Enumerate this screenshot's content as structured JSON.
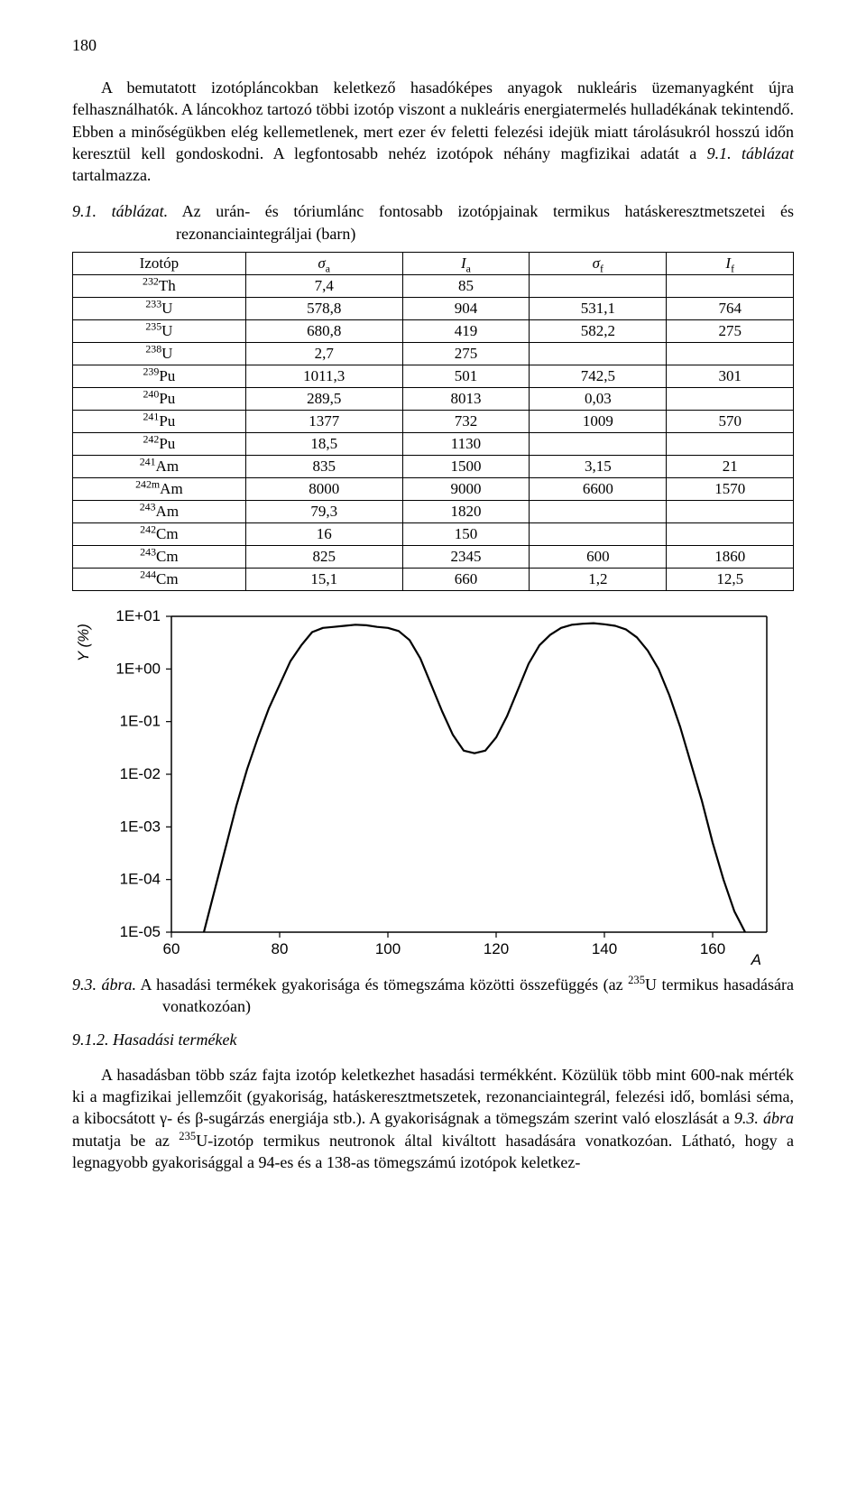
{
  "page_number": "180",
  "para1": "A bemutatott izotópláncokban keletkező hasadóképes anyagok nukleáris üzemanyagként újra felhasználhatók. A láncokhoz tartozó többi izotóp viszont a nukleáris energiatermelés hulladékának tekintendő. Ebben a minőségükben elég kellemetlenek, mert ezer év feletti felezési idejük miatt tárolásukról hosszú időn keresztül kell gondoskodni. A legfontosabb nehéz izotópok néhány magfizikai adatát a ",
  "para1_ref": "9.1. táblázat",
  "para1_tail": " tartalmazza.",
  "table_caption_lead": "9.1. táblázat.",
  "table_caption_rest": " Az urán- és tóriumlánc fontosabb izotópjainak termikus hatáskeresztmetszetei és rezonanciaintegráljai (barn)",
  "table": {
    "headers": [
      "Izotóp",
      "σa",
      "Ia",
      "σf",
      "If"
    ],
    "rows": [
      {
        "iso_pre": "232",
        "iso_sym": "Th",
        "v": [
          "7,4",
          "85",
          "",
          ""
        ]
      },
      {
        "iso_pre": "233",
        "iso_sym": "U",
        "v": [
          "578,8",
          "904",
          "531,1",
          "764"
        ]
      },
      {
        "iso_pre": "235",
        "iso_sym": "U",
        "v": [
          "680,8",
          "419",
          "582,2",
          "275"
        ]
      },
      {
        "iso_pre": "238",
        "iso_sym": "U",
        "v": [
          "2,7",
          "275",
          "",
          ""
        ]
      },
      {
        "iso_pre": "239",
        "iso_sym": "Pu",
        "v": [
          "1011,3",
          "501",
          "742,5",
          "301"
        ]
      },
      {
        "iso_pre": "240",
        "iso_sym": "Pu",
        "v": [
          "289,5",
          "8013",
          "0,03",
          ""
        ]
      },
      {
        "iso_pre": "241",
        "iso_sym": "Pu",
        "v": [
          "1377",
          "732",
          "1009",
          "570"
        ]
      },
      {
        "iso_pre": "242",
        "iso_sym": "Pu",
        "v": [
          "18,5",
          "1130",
          "",
          ""
        ]
      },
      {
        "iso_pre": "241",
        "iso_sym": "Am",
        "v": [
          "835",
          "1500",
          "3,15",
          "21"
        ]
      },
      {
        "iso_pre": "242m",
        "iso_sym": "Am",
        "v": [
          "8000",
          "9000",
          "6600",
          "1570"
        ]
      },
      {
        "iso_pre": "243",
        "iso_sym": "Am",
        "v": [
          "79,3",
          "1820",
          "",
          ""
        ]
      },
      {
        "iso_pre": "242",
        "iso_sym": "Cm",
        "v": [
          "16",
          "150",
          "",
          ""
        ]
      },
      {
        "iso_pre": "243",
        "iso_sym": "Cm",
        "v": [
          "825",
          "2345",
          "600",
          "1860"
        ]
      },
      {
        "iso_pre": "244",
        "iso_sym": "Cm",
        "v": [
          "15,1",
          "660",
          "1,2",
          "12,5"
        ]
      }
    ]
  },
  "chart": {
    "type": "line",
    "xlabel": "A",
    "ylabel": "Y (%)",
    "xlim": [
      60,
      170
    ],
    "xticks": [
      60,
      80,
      100,
      120,
      140,
      160
    ],
    "yscale": "log",
    "ylim_exp": [
      -5,
      1
    ],
    "yticks": [
      "1E-05",
      "1E-04",
      "1E-03",
      "1E-02",
      "1E-01",
      "1E+00",
      "1E+01"
    ],
    "ytick_exp": [
      -5,
      -4,
      -3,
      -2,
      -1,
      0,
      1
    ],
    "line_color": "#000000",
    "line_width": 2.2,
    "axis_color": "#000000",
    "tick_fontsize": 17,
    "label_fontsize": 17,
    "background_color": "#ffffff",
    "data": [
      [
        66,
        -5
      ],
      [
        68,
        -4.2
      ],
      [
        70,
        -3.4
      ],
      [
        72,
        -2.6
      ],
      [
        74,
        -1.9
      ],
      [
        76,
        -1.3
      ],
      [
        78,
        -0.75
      ],
      [
        80,
        -0.3
      ],
      [
        82,
        0.15
      ],
      [
        84,
        0.45
      ],
      [
        86,
        0.7
      ],
      [
        88,
        0.78
      ],
      [
        90,
        0.8
      ],
      [
        92,
        0.82
      ],
      [
        94,
        0.84
      ],
      [
        96,
        0.83
      ],
      [
        98,
        0.8
      ],
      [
        100,
        0.78
      ],
      [
        102,
        0.72
      ],
      [
        104,
        0.55
      ],
      [
        106,
        0.2
      ],
      [
        108,
        -0.3
      ],
      [
        110,
        -0.8
      ],
      [
        112,
        -1.25
      ],
      [
        114,
        -1.55
      ],
      [
        116,
        -1.6
      ],
      [
        118,
        -1.55
      ],
      [
        120,
        -1.3
      ],
      [
        122,
        -0.9
      ],
      [
        124,
        -0.4
      ],
      [
        126,
        0.1
      ],
      [
        128,
        0.45
      ],
      [
        130,
        0.65
      ],
      [
        132,
        0.78
      ],
      [
        134,
        0.84
      ],
      [
        136,
        0.86
      ],
      [
        138,
        0.87
      ],
      [
        140,
        0.85
      ],
      [
        142,
        0.82
      ],
      [
        144,
        0.75
      ],
      [
        146,
        0.6
      ],
      [
        148,
        0.35
      ],
      [
        150,
        0.0
      ],
      [
        152,
        -0.5
      ],
      [
        154,
        -1.1
      ],
      [
        156,
        -1.8
      ],
      [
        158,
        -2.5
      ],
      [
        160,
        -3.3
      ],
      [
        162,
        -4.0
      ],
      [
        164,
        -4.6
      ],
      [
        166,
        -5
      ]
    ]
  },
  "fig_caption_num": "9.3. ábra.",
  "fig_caption_rest": " A hasadási termékek gyakorisága és tömegszáma közötti összefüggés (az 235U termikus hasadására vonatkozóan)",
  "fig_caption_rest_pre": " A hasadási termékek gyakorisága és tömegszáma közötti összefüggés (az ",
  "fig_caption_iso_pre": "235",
  "fig_caption_iso_sym": "U",
  "fig_caption_rest_post": " termikus hasadására vonatkozóan)",
  "section_heading": "9.1.2. Hasadási termékek",
  "para2_a": "A hasadásban több száz fajta izotóp keletkezhet hasadási termékként. Közülük több mint 600-nak mérték ki a magfizikai jellemzőit (gyakoriság, hatáskeresztmetszetek, rezonanciaintegrál, felezési idő, bomlási séma, a kibocsátott γ- és β-sugárzás energiája stb.). A gyakoriságnak a tömegszám szerint való eloszlását a ",
  "para2_ref": "9.3. ábra",
  "para2_b": " mutatja be az ",
  "para2_iso_pre": "235",
  "para2_iso_sym": "U",
  "para2_c": "-izotóp termikus neutronok által kiváltott hasadására vonatkozóan. Látható, hogy a legnagyobb gyakorisággal a 94-es és a 138-as tömegszámú izotópok keletkez-"
}
